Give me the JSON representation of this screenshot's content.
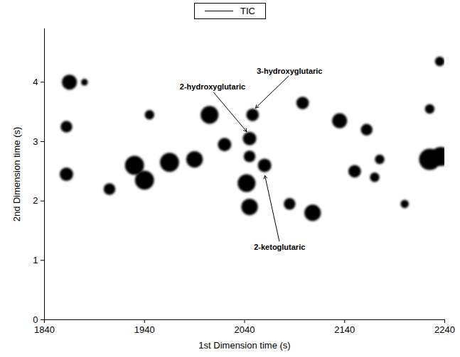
{
  "chart_data": {
    "type": "scatter",
    "xlabel": "1st Dimension time (s)",
    "ylabel": "2nd Dimension time (s)",
    "xlim": [
      1840,
      2240
    ],
    "xticks": [
      1840,
      1940,
      2040,
      2140,
      2240
    ],
    "ylim": [
      0,
      4.9
    ],
    "yticks": [
      0,
      1,
      2,
      3,
      4
    ],
    "legend": "top",
    "series": [
      {
        "name": "TIC",
        "color": "#000000",
        "x": [
          1865,
          1880,
          1862,
          1862,
          1905,
          1930,
          1940,
          1945,
          1965,
          1990,
          2005,
          2020,
          2045,
          2048,
          2045,
          2042,
          2045,
          2060,
          2085,
          2098,
          2108,
          2135,
          2150,
          2162,
          2170,
          2175,
          2200,
          2225,
          2236,
          2225,
          2235
        ],
        "y": [
          4.0,
          4.0,
          3.25,
          2.45,
          2.2,
          2.6,
          2.35,
          3.45,
          2.65,
          2.7,
          3.45,
          2.95,
          3.05,
          3.45,
          2.75,
          2.3,
          1.9,
          2.6,
          1.95,
          3.65,
          1.8,
          3.35,
          2.5,
          3.2,
          2.4,
          2.7,
          1.95,
          2.7,
          2.75,
          3.55,
          4.35
        ],
        "size": [
          5,
          1,
          3,
          4,
          3,
          8,
          8,
          2,
          8,
          6,
          7,
          4,
          4,
          3.5,
          3,
          7,
          6,
          4,
          3,
          3.5,
          6,
          5,
          3.5,
          3,
          2,
          2,
          1.5,
          10,
          8,
          2,
          2
        ]
      }
    ],
    "annotations": [
      {
        "text": "2-hydroxyglutaric",
        "x": 2043,
        "y": 3.15,
        "text_x": 2008,
        "text_y": 3.85
      },
      {
        "text": "3-hydroxyglutaric",
        "x": 2050,
        "y": 3.55,
        "text_x": 2085,
        "text_y": 4.12
      },
      {
        "text": "2-ketoglutaric",
        "x": 2060,
        "y": 2.45,
        "text_x": 2075,
        "text_y": 1.3
      }
    ]
  }
}
